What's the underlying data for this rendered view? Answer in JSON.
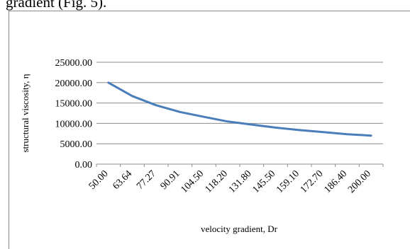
{
  "caption": "gradient (Fig. 5).",
  "chart_data": {
    "type": "line",
    "xlabel": "velocity gradient, Dr",
    "ylabel": "structural viscosity, η",
    "categories": [
      "50.00",
      "63.64",
      "77.27",
      "90.91",
      "104.50",
      "118.20",
      "131.80",
      "145.50",
      "159.10",
      "172.70",
      "186.40",
      "200.00"
    ],
    "series": [
      {
        "values": [
          20000,
          16700,
          14450,
          12800,
          11600,
          10450,
          9700,
          8950,
          8350,
          7850,
          7350,
          7000
        ]
      }
    ],
    "ylim": [
      0,
      25000
    ],
    "yticks": [
      "0.00",
      "5000.00",
      "10000.00",
      "15000.00",
      "20000.00",
      "25000.00"
    ],
    "grid": true,
    "legend": "none",
    "line_color": "#4a7ebb",
    "grid_color": "#8c8c8c"
  }
}
